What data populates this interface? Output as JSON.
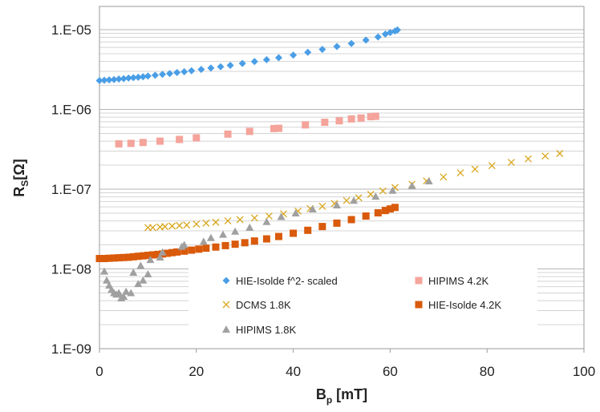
{
  "chart_data": {
    "type": "scatter",
    "xlabel": "B",
    "xlabel_sub": "p",
    "xlabel_unit": " [mT]",
    "ylabel": "R",
    "ylabel_sub": "S",
    "ylabel_unit": "[Ω]",
    "xlim": [
      0,
      100
    ],
    "ylim": [
      1e-09,
      2e-05
    ],
    "yscale": "log",
    "x_ticks": [
      0,
      20,
      40,
      60,
      80,
      100
    ],
    "x_tick_labels": [
      "0",
      "20",
      "40",
      "60",
      "80",
      "100"
    ],
    "y_ticks": [
      1e-09,
      1e-08,
      1e-07,
      1e-06,
      1e-05
    ],
    "y_tick_labels": [
      "1.E-09",
      "1.E-08",
      "1.E-07",
      "1.E-06",
      "1.E-05"
    ],
    "grid": "horizontal major and minor lines",
    "legend_position": "bottom-center",
    "series": [
      {
        "name": "HIE-Isolde f^2- scaled",
        "marker": "diamond",
        "color": "#4a9ee6",
        "points": [
          [
            0,
            2.3e-06
          ],
          [
            1,
            2.32e-06
          ],
          [
            2,
            2.35e-06
          ],
          [
            3,
            2.37e-06
          ],
          [
            4,
            2.4e-06
          ],
          [
            5,
            2.43e-06
          ],
          [
            6,
            2.47e-06
          ],
          [
            7,
            2.5e-06
          ],
          [
            8,
            2.53e-06
          ],
          [
            9,
            2.57e-06
          ],
          [
            10,
            2.62e-06
          ],
          [
            11.5,
            2.68e-06
          ],
          [
            13,
            2.75e-06
          ],
          [
            14.5,
            2.82e-06
          ],
          [
            16,
            2.9e-06
          ],
          [
            17.5,
            2.97e-06
          ],
          [
            19,
            3.05e-06
          ],
          [
            21,
            3.17e-06
          ],
          [
            23,
            3.3e-06
          ],
          [
            25,
            3.43e-06
          ],
          [
            27,
            3.57e-06
          ],
          [
            29.5,
            3.77e-06
          ],
          [
            32,
            3.98e-06
          ],
          [
            34.5,
            4.2e-06
          ],
          [
            37,
            4.45e-06
          ],
          [
            40,
            4.8e-06
          ],
          [
            43,
            5.2e-06
          ],
          [
            46,
            5.65e-06
          ],
          [
            49,
            6.15e-06
          ],
          [
            52,
            6.7e-06
          ],
          [
            55,
            7.4e-06
          ],
          [
            57.5,
            8.1e-06
          ],
          [
            59,
            8.8e-06
          ],
          [
            60,
            9.2e-06
          ],
          [
            61,
            9.6e-06
          ],
          [
            61.5,
            9.9e-06
          ]
        ]
      },
      {
        "name": "HIPIMS 4.2K",
        "marker": "square",
        "color": "#f4a49b",
        "points": [
          [
            4,
            3.7e-07
          ],
          [
            6.5,
            3.75e-07
          ],
          [
            9,
            3.85e-07
          ],
          [
            12.5,
            4e-07
          ],
          [
            16.5,
            4.2e-07
          ],
          [
            20,
            4.4e-07
          ],
          [
            26.5,
            4.9e-07
          ],
          [
            31,
            5.3e-07
          ],
          [
            36,
            5.75e-07
          ],
          [
            37,
            5.8e-07
          ],
          [
            42.5,
            6.4e-07
          ],
          [
            46.5,
            6.9e-07
          ],
          [
            49.5,
            7.2e-07
          ],
          [
            52,
            7.6e-07
          ],
          [
            54,
            7.8e-07
          ],
          [
            56,
            8.1e-07
          ],
          [
            57,
            8.2e-07
          ]
        ]
      },
      {
        "name": "DCMS 1.8K",
        "marker": "x",
        "color": "#d9a61c",
        "points": [
          [
            10,
            3.3e-08
          ],
          [
            11,
            3.3e-08
          ],
          [
            12.5,
            3.35e-08
          ],
          [
            13.5,
            3.4e-08
          ],
          [
            15,
            3.45e-08
          ],
          [
            16.5,
            3.5e-08
          ],
          [
            18,
            3.55e-08
          ],
          [
            20,
            3.65e-08
          ],
          [
            22,
            3.75e-08
          ],
          [
            24,
            3.85e-08
          ],
          [
            26.5,
            4e-08
          ],
          [
            29,
            4.15e-08
          ],
          [
            32,
            4.35e-08
          ],
          [
            35,
            4.6e-08
          ],
          [
            38,
            4.9e-08
          ],
          [
            41,
            5.3e-08
          ],
          [
            43.5,
            5.7e-08
          ],
          [
            46,
            6.1e-08
          ],
          [
            48.5,
            6.6e-08
          ],
          [
            51,
            7.2e-08
          ],
          [
            53.5,
            7.8e-08
          ],
          [
            56,
            8.6e-08
          ],
          [
            58.5,
            9.5e-08
          ],
          [
            61,
            1.05e-07
          ],
          [
            64.5,
            1.15e-07
          ],
          [
            67.5,
            1.27e-07
          ],
          [
            71,
            1.42e-07
          ],
          [
            74.5,
            1.6e-07
          ],
          [
            77.5,
            1.78e-07
          ],
          [
            81,
            1.97e-07
          ],
          [
            85,
            2.17e-07
          ],
          [
            88.5,
            2.4e-07
          ],
          [
            92,
            2.6e-07
          ],
          [
            95,
            2.8e-07
          ]
        ]
      },
      {
        "name": "HIE-Isolde 4.2K",
        "marker": "square",
        "color": "#d95a0a",
        "points": [
          [
            0,
            1.35e-08
          ],
          [
            1,
            1.35e-08
          ],
          [
            2,
            1.36e-08
          ],
          [
            3,
            1.37e-08
          ],
          [
            4,
            1.38e-08
          ],
          [
            5,
            1.39e-08
          ],
          [
            6,
            1.4e-08
          ],
          [
            7,
            1.42e-08
          ],
          [
            8,
            1.44e-08
          ],
          [
            9,
            1.46e-08
          ],
          [
            10,
            1.48e-08
          ],
          [
            11,
            1.5e-08
          ],
          [
            12,
            1.52e-08
          ],
          [
            13,
            1.54e-08
          ],
          [
            14,
            1.57e-08
          ],
          [
            15,
            1.6e-08
          ],
          [
            16,
            1.63e-08
          ],
          [
            17.5,
            1.67e-08
          ],
          [
            19,
            1.72e-08
          ],
          [
            20.5,
            1.77e-08
          ],
          [
            22,
            1.82e-08
          ],
          [
            24,
            1.88e-08
          ],
          [
            26,
            1.96e-08
          ],
          [
            28,
            2.04e-08
          ],
          [
            30,
            2.13e-08
          ],
          [
            32,
            2.24e-08
          ],
          [
            34.5,
            2.38e-08
          ],
          [
            37,
            2.55e-08
          ],
          [
            40,
            2.8e-08
          ],
          [
            43,
            3.05e-08
          ],
          [
            46,
            3.4e-08
          ],
          [
            49,
            3.75e-08
          ],
          [
            52,
            4.15e-08
          ],
          [
            55,
            4.6e-08
          ],
          [
            57.5,
            5.05e-08
          ],
          [
            59,
            5.4e-08
          ],
          [
            60,
            5.65e-08
          ],
          [
            61,
            5.9e-08
          ]
        ]
      },
      {
        "name": "HIPIMS 1.8K",
        "marker": "triangle",
        "color": "#a0a0a0",
        "points": [
          [
            1,
            9.3e-09
          ],
          [
            1.5,
            7.2e-09
          ],
          [
            2,
            6.2e-09
          ],
          [
            2.5,
            5.5e-09
          ],
          [
            3,
            5e-09
          ],
          [
            3.5,
            4.8e-09
          ],
          [
            4,
            5e-09
          ],
          [
            4.5,
            4.3e-09
          ],
          [
            5,
            4.5e-09
          ],
          [
            5.5,
            5.2e-09
          ],
          [
            6.5,
            5e-09
          ],
          [
            7,
            9e-09
          ],
          [
            8,
            6.5e-09
          ],
          [
            8.5,
            1.1e-08
          ],
          [
            9,
            7.2e-09
          ],
          [
            10,
            8.6e-09
          ],
          [
            10.5,
            1.3e-08
          ],
          [
            12.5,
            1.4e-08
          ],
          [
            13,
            1.62e-08
          ],
          [
            17,
            1.9e-08
          ],
          [
            17.5,
            2e-08
          ],
          [
            21.5,
            2.2e-08
          ],
          [
            23,
            2.45e-08
          ],
          [
            25.5,
            2.7e-08
          ],
          [
            28,
            2.95e-08
          ],
          [
            31,
            3.3e-08
          ],
          [
            34.5,
            3.9e-08
          ],
          [
            37.5,
            4.5e-08
          ],
          [
            40.5,
            5e-08
          ],
          [
            44,
            5.6e-08
          ],
          [
            49,
            6.3e-08
          ],
          [
            52.5,
            7.2e-08
          ],
          [
            57,
            8.1e-08
          ],
          [
            60.5,
            9.6e-08
          ],
          [
            64.5,
            1.1e-07
          ],
          [
            68,
            1.26e-07
          ]
        ]
      }
    ]
  }
}
